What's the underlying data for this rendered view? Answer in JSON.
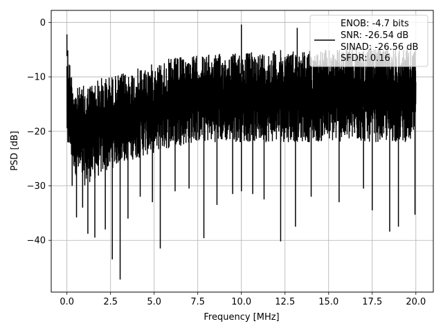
{
  "chart_data": {
    "type": "line",
    "xlabel": "Frequency [MHz]",
    "ylabel": "PSD [dB]",
    "xlim": [
      -0.9,
      21.0
    ],
    "ylim": [
      -49.5,
      2.2
    ],
    "xticks": [
      0.0,
      2.5,
      5.0,
      7.5,
      10.0,
      12.5,
      15.0,
      17.5,
      20.0
    ],
    "xtick_labels": [
      "0.0",
      "2.5",
      "5.0",
      "7.5",
      "10.0",
      "12.5",
      "15.0",
      "17.5",
      "20.0"
    ],
    "yticks": [
      0,
      -10,
      -20,
      -30,
      -40
    ],
    "ytick_labels": [
      "0",
      "−10",
      "−20",
      "−30",
      "−40"
    ],
    "grid": true,
    "legend_position": "top-right",
    "legend_lines": [
      "ENOB: -4.7 bits",
      "SNR: -26.54 dB",
      "SINAD: -26.56 dB",
      "SFDR: 0.16"
    ],
    "line_color": "#000000",
    "x_range": [
      0.0,
      20.0
    ],
    "noise_floor_profile": {
      "x": [
        0,
        0.2,
        0.5,
        1.0,
        2.0,
        3.0,
        4.0,
        5.0,
        6.0,
        7.5,
        10.0,
        12.5,
        15.0,
        17.5,
        20.0
      ],
      "top": [
        -2.2,
        -8.0,
        -12.0,
        -11.5,
        -10.0,
        -9.5,
        -8.5,
        -7.5,
        -6.5,
        -6.0,
        -5.5,
        -5.0,
        -5.0,
        -4.5,
        -4.5
      ],
      "bottom": [
        -22.0,
        -25.0,
        -28.0,
        -30.0,
        -28.0,
        -26.0,
        -25.0,
        -24.0,
        -23.0,
        -22.0,
        -22.0,
        -22.0,
        -22.0,
        -22.0,
        -22.0
      ]
    },
    "spikes": [
      {
        "x": 0.0,
        "y": -2.2
      },
      {
        "x": 0.05,
        "y": -22.0
      },
      {
        "x": 0.3,
        "y": -30.0
      },
      {
        "x": 0.55,
        "y": -35.8
      },
      {
        "x": 0.9,
        "y": -34.0
      },
      {
        "x": 1.2,
        "y": -38.8
      },
      {
        "x": 1.6,
        "y": -39.5
      },
      {
        "x": 2.2,
        "y": -38.0
      },
      {
        "x": 2.6,
        "y": -43.5
      },
      {
        "x": 3.05,
        "y": -47.2
      },
      {
        "x": 3.5,
        "y": -36.0
      },
      {
        "x": 4.2,
        "y": -32.0
      },
      {
        "x": 4.9,
        "y": -33.0
      },
      {
        "x": 5.35,
        "y": -41.5
      },
      {
        "x": 6.2,
        "y": -31.0
      },
      {
        "x": 7.0,
        "y": -30.5
      },
      {
        "x": 7.85,
        "y": -39.6
      },
      {
        "x": 8.6,
        "y": -33.5
      },
      {
        "x": 9.5,
        "y": -31.5
      },
      {
        "x": 10.0,
        "y": -31.0
      },
      {
        "x": 10.65,
        "y": -31.5
      },
      {
        "x": 11.3,
        "y": -32.5
      },
      {
        "x": 12.25,
        "y": -40.2
      },
      {
        "x": 13.1,
        "y": -37.5
      },
      {
        "x": 14.0,
        "y": -32.0
      },
      {
        "x": 15.6,
        "y": -33.0
      },
      {
        "x": 17.0,
        "y": -30.5
      },
      {
        "x": 17.5,
        "y": -34.5
      },
      {
        "x": 18.5,
        "y": -38.4
      },
      {
        "x": 19.0,
        "y": -37.5
      },
      {
        "x": 19.95,
        "y": -35.3
      },
      {
        "x": 10.0,
        "y": -0.4
      },
      {
        "x": 13.2,
        "y": -1.0
      }
    ]
  }
}
